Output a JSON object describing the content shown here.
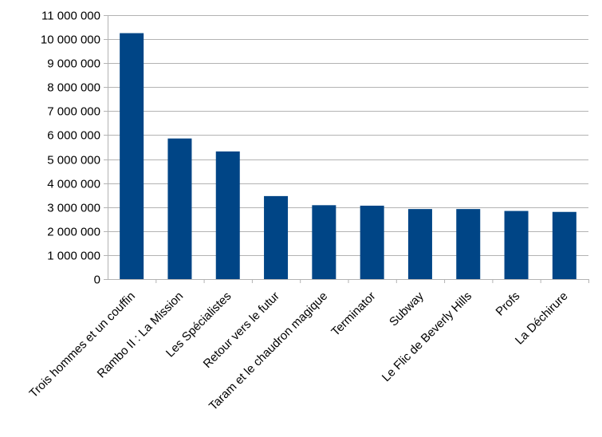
{
  "chart_data": {
    "type": "bar",
    "title": "",
    "xlabel": "",
    "ylabel": "",
    "ylim": [
      0,
      11000000
    ],
    "yticks": [
      "0",
      "1 000 000",
      "2 000 000",
      "3 000 000",
      "4 000 000",
      "5 000 000",
      "6 000 000",
      "7 000 000",
      "8 000 000",
      "9 000 000",
      "10 000 000",
      "11 000 000"
    ],
    "categories": [
      "Trois hommes et un couffin",
      "Rambo II : La Mission",
      "Les Spécialistes",
      "Retour vers le futur",
      "Taram et le chaudron magique",
      "Terminator",
      "Subway",
      "Le Flic de Beverly Hills",
      "Profs",
      "La Déchirure"
    ],
    "values": [
      10250000,
      5860000,
      5320000,
      3460000,
      3080000,
      3060000,
      2920000,
      2920000,
      2840000,
      2800000
    ],
    "bar_color": "#004586",
    "grid": true,
    "legend": "none"
  }
}
